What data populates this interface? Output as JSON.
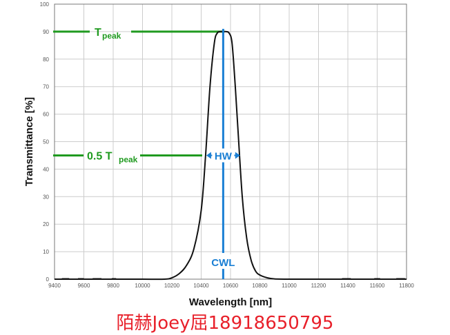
{
  "chart_data": {
    "type": "line",
    "xlabel": "Wavelength [nm]",
    "ylabel": "Transmittance [%]",
    "xlim": [
      9400,
      11800
    ],
    "ylim": [
      0,
      100
    ],
    "x_ticks": [
      9400,
      9600,
      9800,
      10000,
      10200,
      10400,
      10600,
      10800,
      11000,
      11200,
      11400,
      11600,
      11800
    ],
    "y_ticks": [
      0,
      10,
      20,
      30,
      40,
      50,
      60,
      70,
      80,
      90,
      100
    ],
    "grid": true,
    "series": [
      {
        "color": "#111111",
        "x": [
          9400,
          9600,
          9800,
          10000,
          10150,
          10200,
          10250,
          10300,
          10350,
          10400,
          10430,
          10460,
          10490,
          10510,
          10530,
          10550,
          10570,
          10590,
          10610,
          10630,
          10650,
          10680,
          10710,
          10740,
          10770,
          10800,
          10850,
          10900,
          11000,
          11100,
          11800
        ],
        "y": [
          0,
          0,
          0,
          0,
          0,
          0.5,
          2,
          5,
          11,
          25,
          45,
          70,
          86,
          89.5,
          90,
          90,
          90,
          89.5,
          86,
          72,
          55,
          30,
          15,
          7,
          3,
          1.5,
          0.5,
          0.1,
          0,
          0,
          0
        ]
      }
    ],
    "dashes": [
      {
        "x": [
          9450,
          9500
        ]
      },
      {
        "x": [
          9560,
          9600
        ]
      },
      {
        "x": [
          9660,
          9720
        ]
      },
      {
        "x": [
          9790,
          9820
        ]
      },
      {
        "x": [
          11360,
          11420
        ]
      },
      {
        "x": [
          11580,
          11620
        ]
      },
      {
        "x": [
          11730,
          11790
        ]
      }
    ],
    "annotations": {
      "t_peak": {
        "main": "T",
        "sub": "peak",
        "y": 90,
        "color": "#1f9a1f"
      },
      "half_peak": {
        "prefix": "0.5 T",
        "sub": "peak",
        "y": 45,
        "color": "#1f9a1f"
      },
      "cwl": {
        "label": "CWL",
        "x": 10550,
        "color": "#1a7fd4"
      },
      "hw": {
        "label": "HW",
        "x_from": 10435,
        "x_to": 10665,
        "y": 45,
        "color": "#1a7fd4"
      }
    }
  },
  "watermark": "陌赫Joey屈18918650795"
}
